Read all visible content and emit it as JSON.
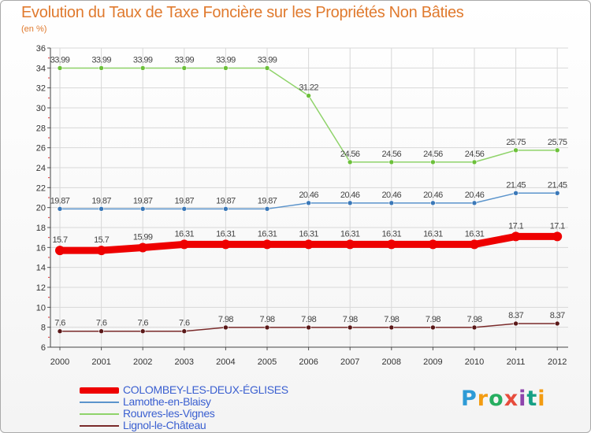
{
  "chart_data": {
    "type": "line",
    "title": "Evolution du Taux de Taxe Foncière sur les Propriétés Non Bâties",
    "ylabel": "(en %)",
    "xlabel": "",
    "x": [
      "2000",
      "2001",
      "2002",
      "2003",
      "2004",
      "2005",
      "2006",
      "2007",
      "2008",
      "2009",
      "2010",
      "2011",
      "2012"
    ],
    "ylim": [
      6,
      36
    ],
    "yticks": [
      6,
      8,
      10,
      12,
      14,
      16,
      18,
      20,
      22,
      24,
      26,
      28,
      30,
      32,
      34,
      36
    ],
    "grid": true,
    "legend_position": "bottom-left",
    "series": [
      {
        "name": "COLOMBEY-LES-DEUX-ÉGLISES",
        "color": "#ee0000",
        "values": [
          15.7,
          15.7,
          15.99,
          16.31,
          16.31,
          16.31,
          16.31,
          16.31,
          16.31,
          16.31,
          16.31,
          17.1,
          17.1
        ],
        "labels": [
          "15.7",
          "15.7",
          "15.99",
          "16.31",
          "16.31",
          "16.31",
          "16.31",
          "16.31",
          "16.31",
          "16.31",
          "16.31",
          "17.1",
          "17.1"
        ]
      },
      {
        "name": "Lamothe-en-Blaisy",
        "color": "#5b94cc",
        "values": [
          19.87,
          19.87,
          19.87,
          19.87,
          19.87,
          19.87,
          20.46,
          20.46,
          20.46,
          20.46,
          20.46,
          21.45,
          21.45
        ],
        "labels": [
          "19.87",
          "19.87",
          "19.87",
          "19.87",
          "19.87",
          "19.87",
          "20.46",
          "20.46",
          "20.46",
          "20.46",
          "20.46",
          "21.45",
          "21.45"
        ]
      },
      {
        "name": "Rouvres-les-Vignes",
        "color": "#8fd36a",
        "values": [
          33.99,
          33.99,
          33.99,
          33.99,
          33.99,
          33.99,
          31.22,
          24.56,
          24.56,
          24.56,
          24.56,
          25.75,
          25.75
        ],
        "labels": [
          "33.99",
          "33.99",
          "33.99",
          "33.99",
          "33.99",
          "33.99",
          "31.22",
          "24.56",
          "24.56",
          "24.56",
          "24.56",
          "25.75",
          "25.75"
        ]
      },
      {
        "name": "Lignol-le-Château",
        "color": "#7a2a2a",
        "values": [
          7.6,
          7.6,
          7.6,
          7.6,
          7.98,
          7.98,
          7.98,
          7.98,
          7.98,
          7.98,
          7.98,
          8.37,
          8.37
        ],
        "labels": [
          "7.6",
          "7.6",
          "7.6",
          "7.6",
          "7.98",
          "7.98",
          "7.98",
          "7.98",
          "7.98",
          "7.98",
          "7.98",
          "8.37",
          "8.37"
        ]
      }
    ]
  },
  "logo": {
    "letters": [
      "P",
      "r",
      "o",
      "x",
      "i",
      "t",
      "i"
    ]
  }
}
